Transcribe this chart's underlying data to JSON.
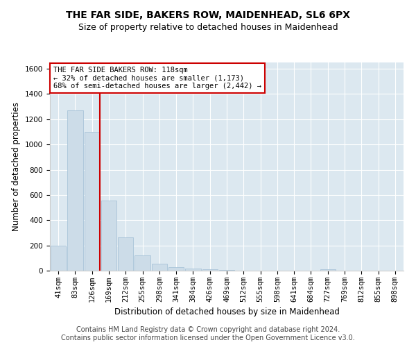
{
  "title": "THE FAR SIDE, BAKERS ROW, MAIDENHEAD, SL6 6PX",
  "subtitle": "Size of property relative to detached houses in Maidenhead",
  "xlabel": "Distribution of detached houses by size in Maidenhead",
  "ylabel": "Number of detached properties",
  "categories": [
    "41sqm",
    "83sqm",
    "126sqm",
    "169sqm",
    "212sqm",
    "255sqm",
    "298sqm",
    "341sqm",
    "384sqm",
    "426sqm",
    "469sqm",
    "512sqm",
    "555sqm",
    "598sqm",
    "641sqm",
    "684sqm",
    "727sqm",
    "769sqm",
    "812sqm",
    "855sqm",
    "898sqm"
  ],
  "values": [
    200,
    1270,
    1100,
    555,
    265,
    120,
    55,
    30,
    18,
    10,
    5,
    2,
    2,
    2,
    0,
    0,
    10,
    0,
    0,
    0,
    0
  ],
  "bar_color": "#ccdce8",
  "bar_edge_color": "#a8c4d8",
  "property_line_x": 2.48,
  "property_line_color": "#cc0000",
  "annotation_text": "THE FAR SIDE BAKERS ROW: 118sqm\n← 32% of detached houses are smaller (1,173)\n68% of semi-detached houses are larger (2,442) →",
  "annotation_box_facecolor": "#ffffff",
  "annotation_box_edgecolor": "#cc0000",
  "ylim": [
    0,
    1650
  ],
  "yticks": [
    0,
    200,
    400,
    600,
    800,
    1000,
    1200,
    1400,
    1600
  ],
  "plot_bg_color": "#dce8f0",
  "grid_color": "#ffffff",
  "footer_line1": "Contains HM Land Registry data © Crown copyright and database right 2024.",
  "footer_line2": "Contains public sector information licensed under the Open Government Licence v3.0.",
  "title_fontsize": 10,
  "subtitle_fontsize": 9,
  "xlabel_fontsize": 8.5,
  "ylabel_fontsize": 8.5,
  "tick_fontsize": 7.5,
  "annotation_fontsize": 7.5,
  "footer_fontsize": 7
}
